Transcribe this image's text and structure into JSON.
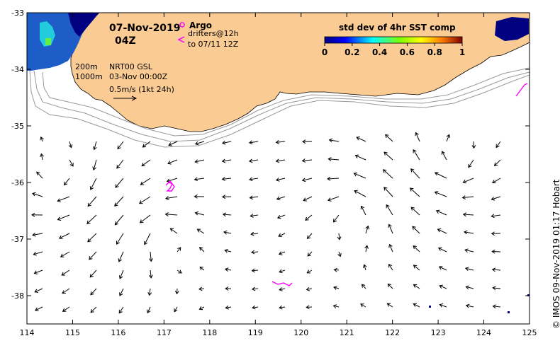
{
  "map": {
    "date": "07-Nov-2019",
    "hour": "04Z",
    "colorbar_title": "std dev of 4hr SST comp",
    "colorbar_ticks": [
      "0",
      "0.2",
      "0.4",
      "0.6",
      "0.8",
      "1"
    ],
    "legend": {
      "argo_label": "Argo",
      "drifters_label": "drifters@12h",
      "drifters_to": "to 07/11 12Z",
      "argo_color": "#ff00ff",
      "drifter_color": "#ff00ff"
    },
    "isobath_200": "200m",
    "isobath_1000": "1000m",
    "product": "NRT00 GSL",
    "product_date": "03-Nov 00:00Z",
    "scale_label": "0.5m/s (1kt 24h)",
    "credit": "© IMOS 09-Nov-2019 01:17 Hobart",
    "x_ticks": [
      "114",
      "115",
      "116",
      "117",
      "118",
      "119",
      "120",
      "121",
      "122",
      "123",
      "124",
      "125"
    ],
    "y_ticks": [
      "-33",
      "-34",
      "-35",
      "-36",
      "-37",
      "-38"
    ],
    "extent": {
      "lon": [
        114,
        125
      ],
      "lat": [
        -38.5,
        -33
      ]
    },
    "colors": {
      "land": "#fbcb94",
      "sst_warm": "#1e5cc8",
      "sst_cold": "#000080",
      "shelf": "#999999"
    }
  }
}
